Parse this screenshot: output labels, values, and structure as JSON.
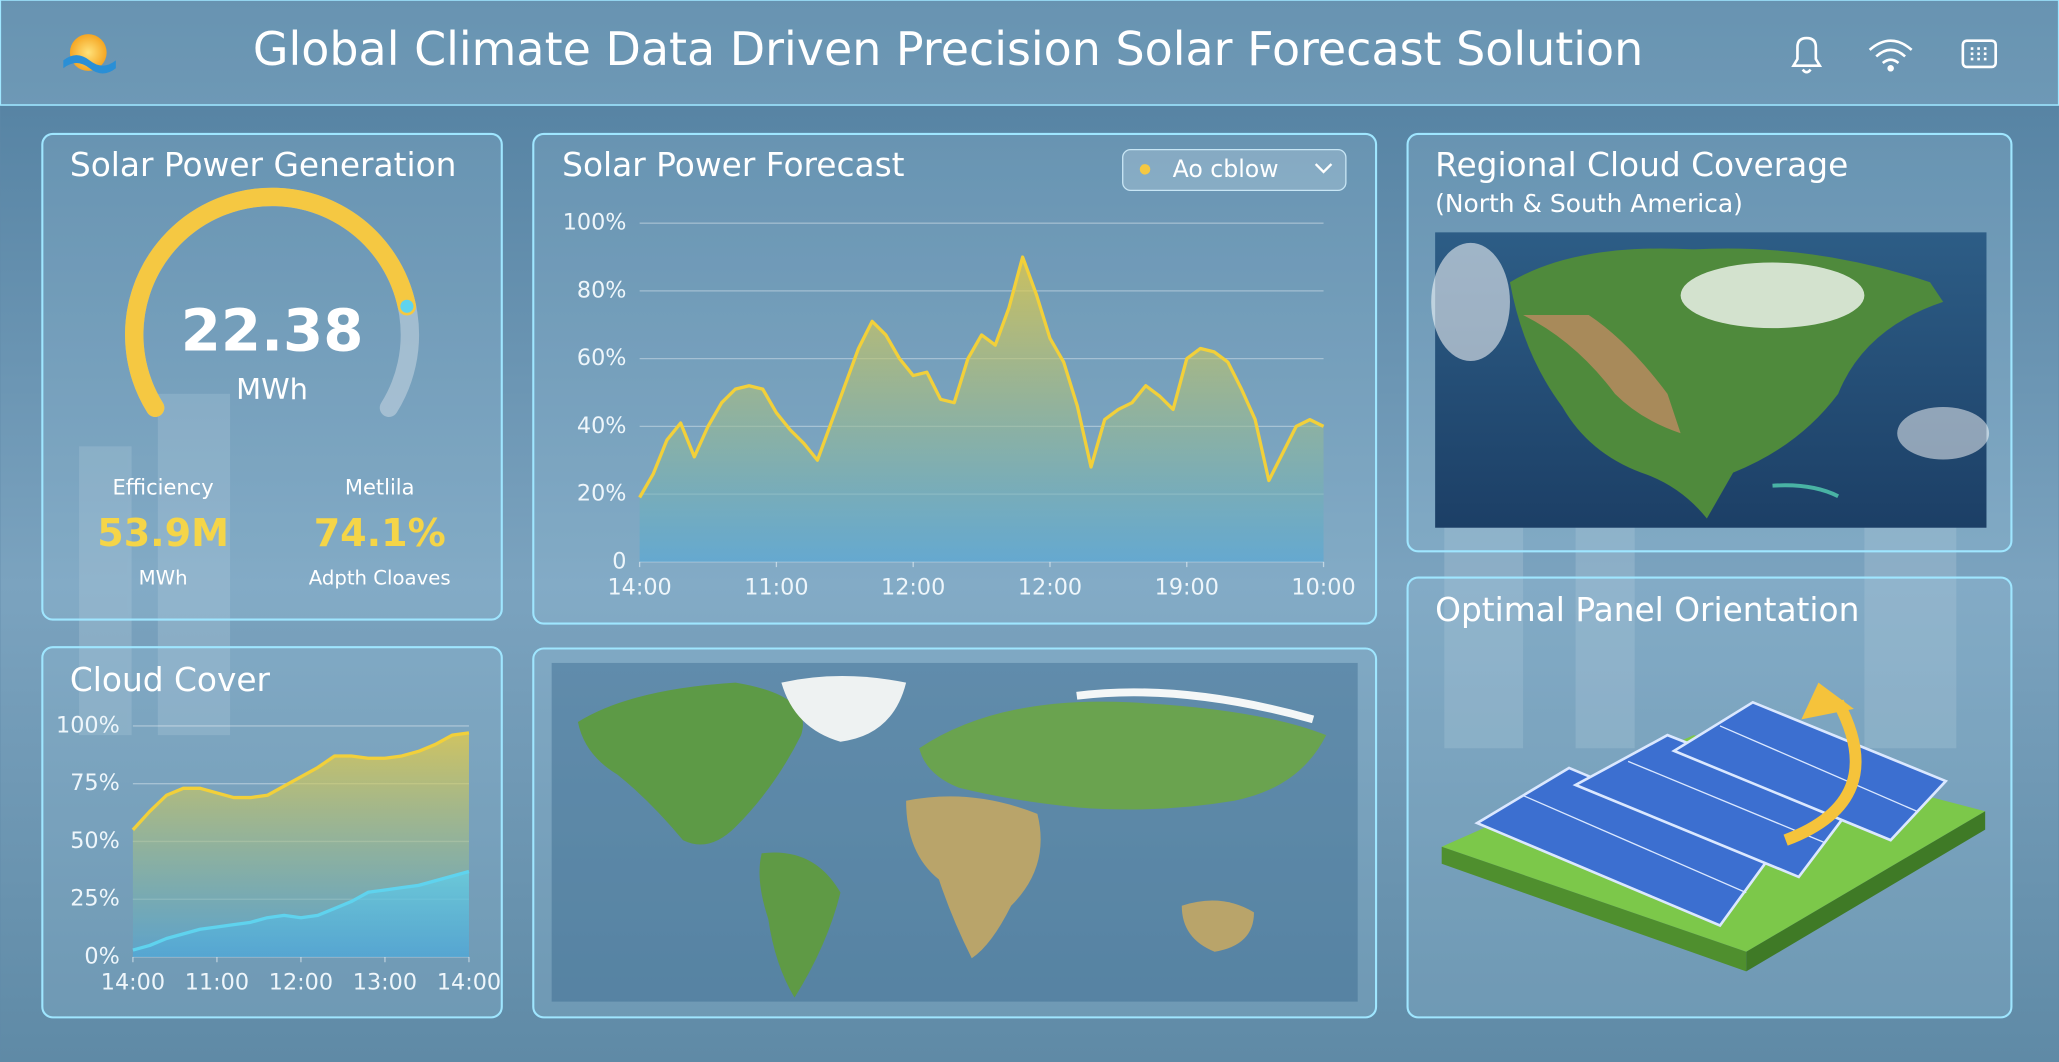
{
  "header": {
    "title": "Global Climate Data Driven Precision Solar Forecast Solution"
  },
  "generation": {
    "title": "Solar Power Generation",
    "gauge": {
      "value": 22.38,
      "unit": "MWh",
      "fill_percent": 82
    },
    "stats": [
      {
        "label": "Efficiency",
        "value": "53.9M",
        "unit": "MWh"
      },
      {
        "label": "Metlila",
        "value": "74.1%",
        "unit": "Adpth Cloaves"
      }
    ]
  },
  "forecast": {
    "title": "Solar Power Forecast",
    "dropdown": "Ao cblow",
    "chart_data": {
      "type": "area",
      "x": [
        0,
        2,
        4,
        6,
        8,
        10,
        12,
        14,
        16,
        18,
        20,
        22,
        24,
        26,
        28,
        30,
        32,
        34,
        36,
        38,
        40,
        42,
        44,
        46,
        48,
        50,
        52,
        54,
        56,
        58,
        60,
        62,
        64,
        66,
        68,
        70,
        72,
        74,
        76,
        78,
        80,
        82,
        84,
        86,
        88,
        90,
        92,
        94,
        96,
        98,
        100
      ],
      "series": [
        {
          "color": "#f2d03a",
          "values": [
            19,
            26,
            36,
            41,
            31,
            40,
            47,
            51,
            52,
            51,
            44,
            39,
            35,
            30,
            41,
            52,
            63,
            71,
            67,
            60,
            55,
            56,
            48,
            47,
            60,
            67,
            64,
            75,
            90,
            79,
            66,
            59,
            46,
            28,
            42,
            45,
            47,
            52,
            49,
            45,
            60,
            63,
            62,
            59,
            51,
            42,
            24,
            32,
            40,
            42,
            40
          ]
        }
      ],
      "xlim": [
        0,
        100
      ],
      "xticks": [
        {
          "value": 0,
          "label": "14:00"
        },
        {
          "value": 20,
          "label": "11:00"
        },
        {
          "value": 40,
          "label": "12:00"
        },
        {
          "value": 60,
          "label": "12:00"
        },
        {
          "value": 80,
          "label": "19:00"
        },
        {
          "value": 100,
          "label": "10:00"
        }
      ],
      "ylim": [
        0,
        100
      ],
      "yticks": [
        0,
        {
          "value": 20,
          "label": "20%"
        },
        {
          "value": 40,
          "label": "40%"
        },
        {
          "value": 60,
          "label": "60%"
        },
        {
          "value": 80,
          "label": "80%"
        },
        {
          "value": 100,
          "label": "100%"
        }
      ],
      "grid": true
    }
  },
  "cloud_cover": {
    "title": "Cloud Cover",
    "chart_data": {
      "type": "area",
      "x": [
        0,
        5,
        10,
        15,
        20,
        25,
        30,
        35,
        40,
        45,
        50,
        55,
        60,
        65,
        70,
        75,
        80,
        85,
        90,
        95,
        100
      ],
      "series": [
        {
          "color": "#f2d03a",
          "values": [
            55,
            63,
            70,
            73,
            73,
            71,
            69,
            69,
            70,
            74,
            78,
            82,
            87,
            87,
            86,
            86,
            87,
            89,
            92,
            96,
            97
          ]
        },
        {
          "color": "#5fd3ee",
          "values": [
            3,
            5,
            8,
            10,
            12,
            13,
            14,
            15,
            17,
            18,
            17,
            18,
            21,
            24,
            28,
            29,
            30,
            31,
            33,
            35,
            37
          ]
        }
      ],
      "xlim": [
        0,
        100
      ],
      "xticks": [
        {
          "value": 0,
          "label": "14:00"
        },
        {
          "value": 25,
          "label": "11:00"
        },
        {
          "value": 50,
          "label": "12:00"
        },
        {
          "value": 75,
          "label": "13:00"
        },
        {
          "value": 100,
          "label": "14:00"
        }
      ],
      "ylim": [
        0,
        100
      ],
      "yticks": [
        {
          "value": 0,
          "label": "0%"
        },
        {
          "value": 25,
          "label": "25%"
        },
        {
          "value": 50,
          "label": "50%"
        },
        {
          "value": 75,
          "label": "75%"
        },
        {
          "value": 100,
          "label": "100%"
        }
      ],
      "grid": true
    }
  },
  "regional": {
    "title": "Regional Cloud Coverage",
    "subtitle": "(North & South America)"
  },
  "orientation": {
    "title": "Optimal Panel Orientation"
  }
}
